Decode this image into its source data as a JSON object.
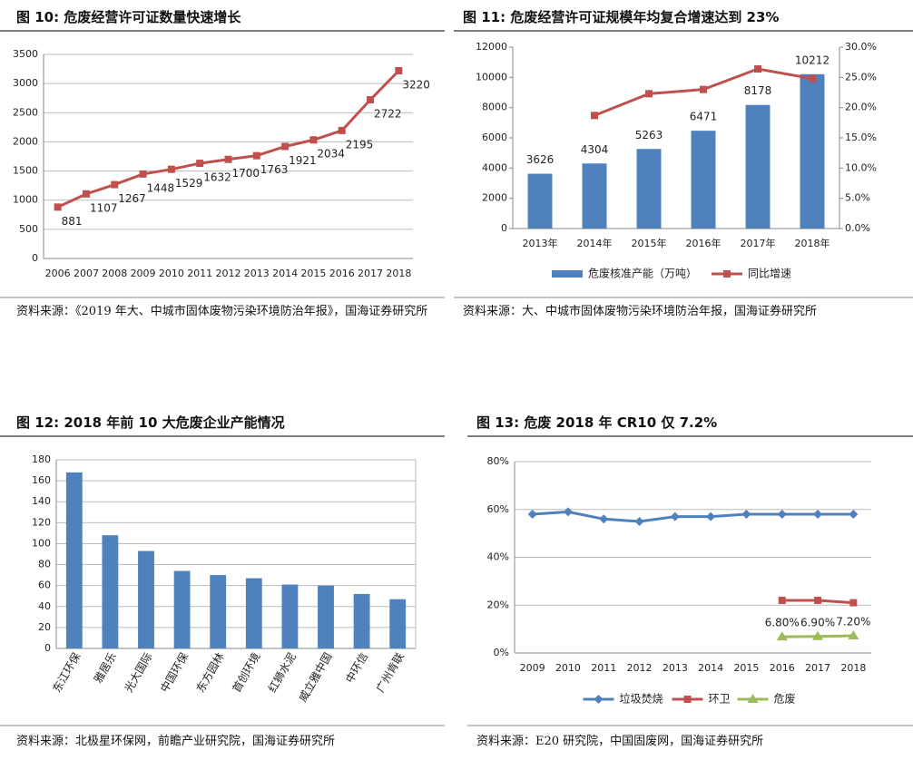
{
  "chart_data": [
    {
      "type": "line",
      "title": "图 10:  危废经营许可证数量快速增长",
      "source": "资料来源：《2019 年大、中城市固体废物污染环境防治年报》，国海证券研究所",
      "categories": [
        "2006",
        "2007",
        "2008",
        "2009",
        "2010",
        "2011",
        "2012",
        "2013",
        "2014",
        "2015",
        "2016",
        "2017",
        "2018"
      ],
      "series": [
        {
          "color": "#c0504d",
          "marker": "square",
          "labels": true,
          "label_position": "below",
          "values": [
            881,
            1107,
            1267,
            1448,
            1529,
            1632,
            1700,
            1763,
            1921,
            2034,
            2195,
            2722,
            3220
          ]
        }
      ],
      "ylim": [
        0,
        3500
      ],
      "yticks": [
        0,
        500,
        1000,
        1500,
        2000,
        2500,
        3000,
        3500
      ],
      "grid": true
    },
    {
      "type": "bar",
      "title": "图 11:  危废经营许可证规模年均复合增速达到 23%",
      "source": "资料来源：大、中城市固体废物污染环境防治年报，国海证券研究所",
      "categories": [
        "2013年",
        "2014年",
        "2015年",
        "2016年",
        "2017年",
        "2018年"
      ],
      "series": [
        {
          "name": "危废核准产能（万吨）",
          "color": "#4f81bd",
          "labels": true,
          "label_position": "above",
          "values": [
            3626,
            4304,
            5263,
            6471,
            8178,
            10212
          ]
        },
        {
          "name": "同比增速",
          "type": "line",
          "axis": "y2",
          "color": "#c0504d",
          "marker": "square",
          "values": [
            null,
            18.7,
            22.3,
            23.0,
            26.4,
            24.8
          ]
        }
      ],
      "ylim": [
        0,
        12000
      ],
      "yticks": [
        0,
        2000,
        4000,
        6000,
        8000,
        10000,
        12000
      ],
      "y2lim": [
        0,
        30
      ],
      "y2ticks": [
        {
          "value": 0,
          "label": "0.0%"
        },
        {
          "value": 5,
          "label": "5.0%"
        },
        {
          "value": 10,
          "label": "10.0%"
        },
        {
          "value": 15,
          "label": "15.0%"
        },
        {
          "value": 20,
          "label": "20.0%"
        },
        {
          "value": 25,
          "label": "25.0%"
        },
        {
          "value": 30,
          "label": "30.0%"
        }
      ],
      "grid": false,
      "legend": "bottom"
    },
    {
      "type": "bar",
      "title": "图 12:  2018 年前 10 大危废企业产能情况",
      "source": "资料来源：北极星环保网，前瞻产业研究院，国海证券研究所",
      "categories": [
        "东江环保",
        "雅居乐",
        "光大国际",
        "中国环保",
        "东方园林",
        "首创环境",
        "红狮水泥",
        "威立雅中国",
        "中环信",
        "广州肯联"
      ],
      "series": [
        {
          "color": "#4f81bd",
          "values": [
            168,
            108,
            93,
            74,
            70,
            67,
            61,
            60,
            52,
            47
          ]
        }
      ],
      "ylim": [
        0,
        180
      ],
      "yticks": [
        0,
        20,
        40,
        60,
        80,
        100,
        120,
        140,
        160,
        180
      ],
      "grid": true,
      "rotate_x_labels": true
    },
    {
      "type": "line",
      "title": "图 13:  危废 2018 年 CR10 仅 7.2%",
      "source": "资料来源：E20 研究院，中国固废网，国海证券研究所",
      "categories": [
        "2009",
        "2010",
        "2011",
        "2012",
        "2013",
        "2014",
        "2015",
        "2016",
        "2017",
        "2018"
      ],
      "series": [
        {
          "name": "垃圾焚烧",
          "color": "#4f81bd",
          "marker": "diamond",
          "values": [
            58,
            59,
            56,
            55,
            57,
            57,
            58,
            58,
            58,
            58
          ]
        },
        {
          "name": "环卫",
          "color": "#c0504d",
          "marker": "square",
          "values": [
            null,
            null,
            null,
            null,
            null,
            null,
            null,
            22,
            22,
            21
          ]
        },
        {
          "name": "危废",
          "color": "#9bbb59",
          "marker": "triangle",
          "labels": true,
          "label_position": "above",
          "values": [
            null,
            null,
            null,
            null,
            null,
            null,
            null,
            6.8,
            6.9,
            7.2
          ],
          "value_labels": [
            null,
            null,
            null,
            null,
            null,
            null,
            null,
            "6.80%",
            "6.90%",
            "7.20%"
          ]
        }
      ],
      "ylim": [
        0,
        80
      ],
      "yticks": [
        {
          "value": 0,
          "label": "0%"
        },
        {
          "value": 20,
          "label": "20%"
        },
        {
          "value": 40,
          "label": "40%"
        },
        {
          "value": 60,
          "label": "60%"
        },
        {
          "value": 80,
          "label": "80%"
        }
      ],
      "grid": true,
      "legend": "bottom"
    }
  ]
}
